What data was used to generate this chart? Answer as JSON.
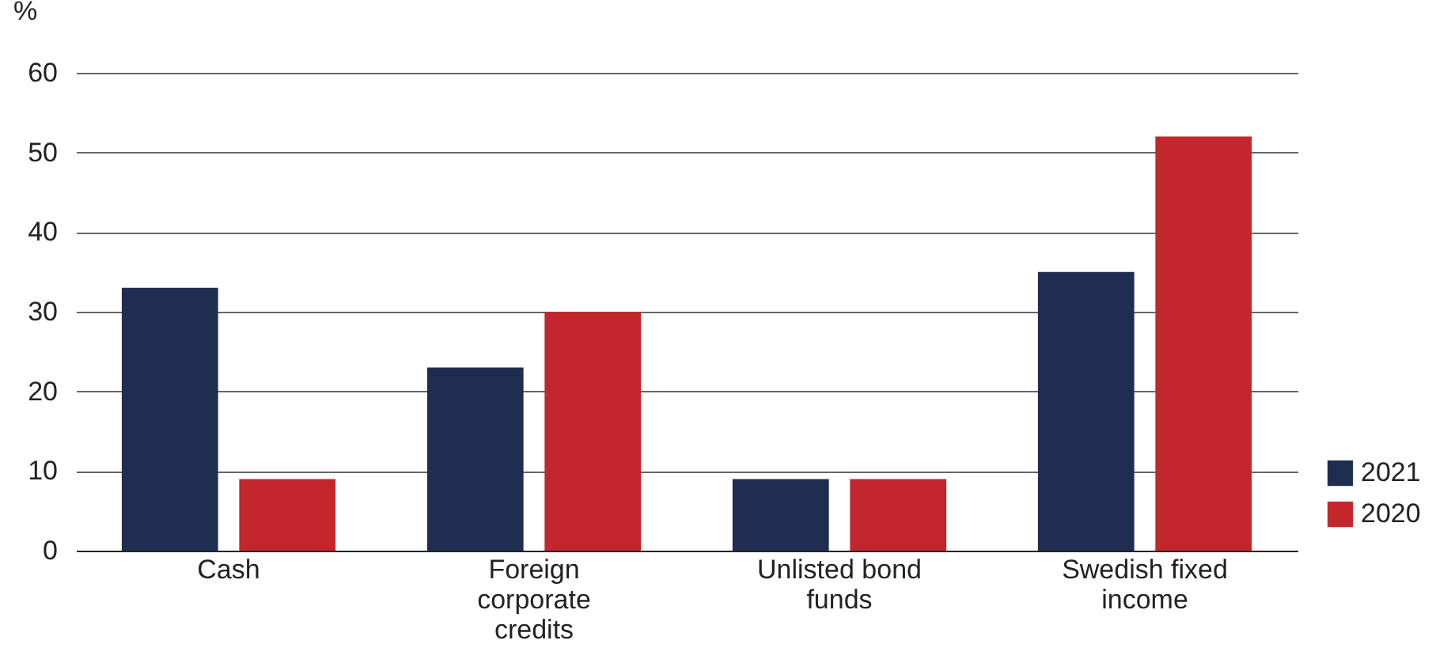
{
  "chart_data": {
    "type": "bar",
    "ylabel": "%",
    "categories": [
      "Cash",
      "Foreign corporate credits",
      "Unlisted bond funds",
      "Swedish fixed income"
    ],
    "series": [
      {
        "name": "2021",
        "color": "#1f2d50",
        "values": [
          33,
          23,
          9,
          35
        ]
      },
      {
        "name": "2020",
        "color": "#c1272d",
        "values": [
          9,
          30,
          9,
          52
        ]
      }
    ],
    "ylim": [
      0,
      60
    ],
    "yticks": [
      0,
      10,
      20,
      30,
      40,
      50,
      60
    ],
    "grid": "y",
    "legend": "bottom right"
  }
}
